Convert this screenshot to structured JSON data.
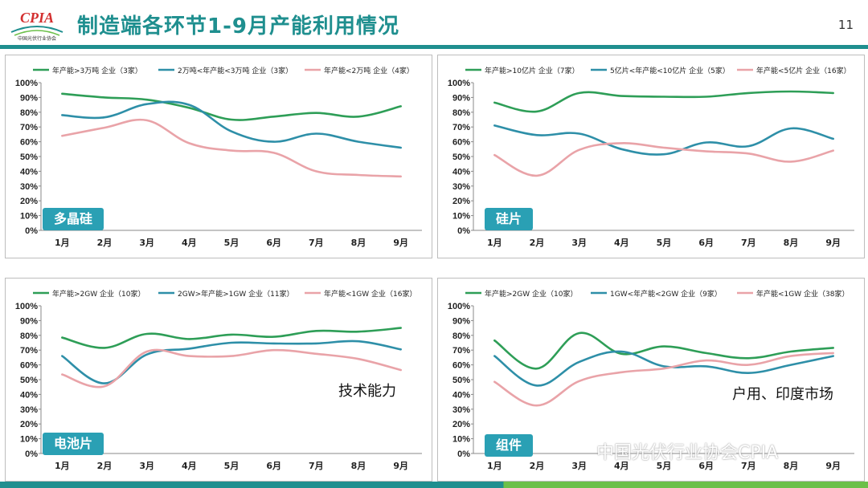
{
  "header": {
    "title": "制造端各环节1-9月产能利用情况",
    "page_number": "11",
    "logo_text": "CPIA",
    "logo_subtitle": "中国光伏行业协会"
  },
  "colors": {
    "green": "#2e9e57",
    "teal": "#2e8fa8",
    "pink": "#e9a3a8",
    "accent": "#1f8f8f",
    "tag": "#2aa0b4"
  },
  "watermark": "中国光伏行业协会CPIA",
  "chart_data": [
    {
      "type": "line",
      "tag": "多晶硅",
      "note": "",
      "categories": [
        "1月",
        "2月",
        "3月",
        "4月",
        "5月",
        "6月",
        "7月",
        "8月",
        "9月"
      ],
      "yticks": [
        "0%",
        "10%",
        "20%",
        "30%",
        "40%",
        "50%",
        "60%",
        "70%",
        "80%",
        "90%",
        "100%"
      ],
      "ylim": [
        0,
        100
      ],
      "series": [
        {
          "name": "年产能>3万吨 企业（3家）",
          "color": "#2e9e57",
          "values": [
            92.5,
            90,
            88.5,
            83,
            75,
            77,
            79.5,
            77,
            84
          ]
        },
        {
          "name": "2万吨<年产能<3万吨 企业（3家）",
          "color": "#2e8fa8",
          "values": [
            78,
            76.5,
            85.5,
            85,
            67,
            60,
            65.5,
            60,
            56
          ]
        },
        {
          "name": "年产能<2万吨 企业（4家）",
          "color": "#e9a3a8",
          "values": [
            64,
            69.5,
            74.5,
            59,
            54,
            52.5,
            40,
            37.5,
            36.5
          ]
        }
      ]
    },
    {
      "type": "line",
      "tag": "硅片",
      "note": "",
      "categories": [
        "1月",
        "2月",
        "3月",
        "4月",
        "5月",
        "6月",
        "7月",
        "8月",
        "9月"
      ],
      "yticks": [
        "0%",
        "10%",
        "20%",
        "30%",
        "40%",
        "50%",
        "60%",
        "70%",
        "80%",
        "90%",
        "100%"
      ],
      "ylim": [
        0,
        100
      ],
      "series": [
        {
          "name": "年产能>10亿片 企业（7家）",
          "color": "#2e9e57",
          "values": [
            86.5,
            80.5,
            93,
            91,
            90.5,
            90.5,
            93,
            94,
            93
          ]
        },
        {
          "name": "5亿片<年产能<10亿片 企业（5家）",
          "color": "#2e8fa8",
          "values": [
            71,
            64.5,
            65.5,
            55,
            51.5,
            59.5,
            57,
            69,
            62
          ]
        },
        {
          "name": "年产能<5亿片 企业（16家）",
          "color": "#e9a3a8",
          "values": [
            51,
            37,
            54.5,
            59,
            56,
            53.5,
            52,
            46.5,
            54
          ]
        }
      ]
    },
    {
      "type": "line",
      "tag": "电池片",
      "note": "技术能力",
      "categories": [
        "1月",
        "2月",
        "3月",
        "4月",
        "5月",
        "6月",
        "7月",
        "8月",
        "9月"
      ],
      "yticks": [
        "0%",
        "10%",
        "20%",
        "30%",
        "40%",
        "50%",
        "60%",
        "70%",
        "80%",
        "90%",
        "100%"
      ],
      "ylim": [
        0,
        100
      ],
      "series": [
        {
          "name": "年产能>2GW 企业（10家）",
          "color": "#2e9e57",
          "values": [
            78.5,
            71.5,
            81,
            77.5,
            80.5,
            79,
            83,
            82.5,
            85
          ]
        },
        {
          "name": "2GW>年产能>1GW 企业（11家）",
          "color": "#2e8fa8",
          "values": [
            66,
            47.5,
            67,
            71,
            75,
            74.5,
            74.5,
            76,
            70.5
          ]
        },
        {
          "name": "年产能<1GW 企业（16家）",
          "color": "#e9a3a8",
          "values": [
            53.5,
            45.5,
            69,
            66,
            66,
            70,
            67.5,
            64,
            56.5
          ]
        }
      ]
    },
    {
      "type": "line",
      "tag": "组件",
      "note": "户用、印度市场",
      "categories": [
        "1月",
        "2月",
        "3月",
        "4月",
        "5月",
        "6月",
        "7月",
        "8月",
        "9月"
      ],
      "yticks": [
        "0%",
        "10%",
        "20%",
        "30%",
        "40%",
        "50%",
        "60%",
        "70%",
        "80%",
        "90%",
        "100%"
      ],
      "ylim": [
        0,
        100
      ],
      "series": [
        {
          "name": "年产能>2GW 企业（10家）",
          "color": "#2e9e57",
          "values": [
            76.5,
            57.5,
            81.5,
            67.5,
            72.5,
            68,
            64.5,
            69,
            71.5
          ]
        },
        {
          "name": "1GW<年产能<2GW 企业（9家）",
          "color": "#2e8fa8",
          "values": [
            66,
            46,
            62,
            69,
            59,
            59,
            54.5,
            60,
            66
          ]
        },
        {
          "name": "年产能<1GW 企业（38家）",
          "color": "#e9a3a8",
          "values": [
            48.5,
            32.5,
            49,
            55,
            57.5,
            63,
            60,
            66,
            68
          ]
        }
      ]
    }
  ]
}
